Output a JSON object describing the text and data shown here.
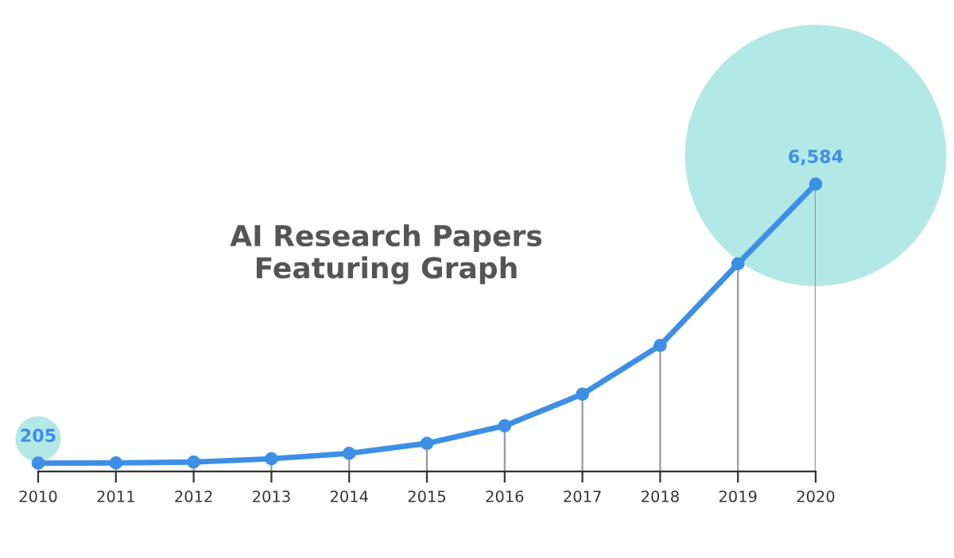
{
  "chart_data": {
    "type": "line",
    "title": "AI Research Papers\nFeaturing Graph",
    "x": [
      2010,
      2011,
      2012,
      2013,
      2014,
      2015,
      2016,
      2017,
      2018,
      2019,
      2020
    ],
    "series": [
      {
        "color": "#3d8fe6",
        "values": [
          205,
          210,
          229,
          306,
          428,
          657,
          1059,
          1782,
          2896,
          4764,
          6584
        ],
        "value_labels": [
          "205",
          null,
          null,
          null,
          null,
          null,
          null,
          null,
          null,
          null,
          "6,584"
        ]
      }
    ],
    "xlim": [
      2010,
      2020
    ],
    "xticks": [
      2010,
      2011,
      2012,
      2013,
      2014,
      2015,
      2016,
      2017,
      2018,
      2019,
      2020
    ],
    "tick_labels": "x",
    "grid": "x",
    "legend": false,
    "marker": "circle",
    "line_style": "solid"
  }
}
